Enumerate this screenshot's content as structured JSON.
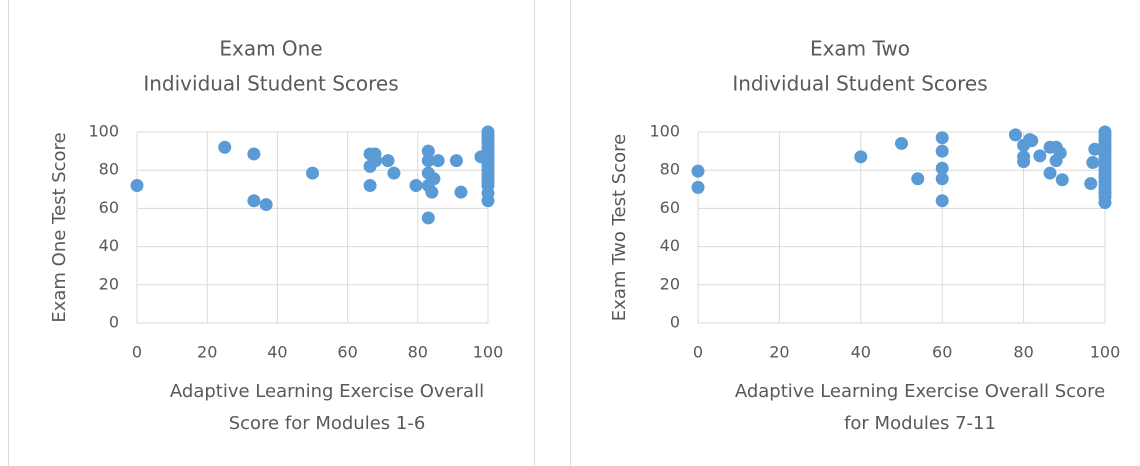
{
  "chart_data": [
    {
      "type": "scatter",
      "title": [
        "Exam One",
        "Individual Student Scores"
      ],
      "xlabel": [
        "Adaptive Learning Exercise Overall",
        "Score for Modules 1-6"
      ],
      "ylabel": "Exam One Test Score",
      "color": "#5b9bd5",
      "grid": true,
      "xlim": [
        0,
        100
      ],
      "ylim": [
        0,
        100
      ],
      "xticks": [
        0,
        20,
        40,
        60,
        80,
        100
      ],
      "yticks": [
        0,
        20,
        40,
        60,
        80,
        100
      ],
      "x": [
        0,
        25,
        33.3,
        33.3,
        36.8,
        50,
        66.4,
        67.8,
        66.4,
        66.4,
        68,
        71.5,
        73.2,
        79.5,
        83,
        83,
        83,
        83,
        83,
        84,
        84.6,
        85.8,
        91,
        92.3,
        98,
        100,
        100,
        100,
        100,
        100,
        100,
        100,
        100,
        100,
        100,
        100,
        100,
        100,
        100,
        100,
        100,
        100
      ],
      "y": [
        72,
        92,
        88.5,
        64,
        62,
        78.5,
        88.5,
        88.5,
        82,
        72,
        85,
        85,
        78.5,
        72,
        90,
        85,
        78.5,
        72,
        55,
        68.5,
        75.5,
        85,
        85,
        68.5,
        87,
        100,
        98,
        96,
        94,
        92,
        90,
        88,
        86,
        84,
        82,
        80,
        78,
        76,
        74,
        72,
        68,
        64
      ]
    },
    {
      "type": "scatter",
      "title": [
        "Exam Two",
        "Individual Student Scores"
      ],
      "xlabel": [
        "Adaptive Learning Exercise Overall Score",
        "for Modules 7-11"
      ],
      "ylabel": "Exam Two Test Score",
      "color": "#5b9bd5",
      "grid": true,
      "xlim": [
        0,
        100
      ],
      "ylim": [
        0,
        100
      ],
      "xticks": [
        0,
        20,
        40,
        60,
        80,
        100
      ],
      "yticks": [
        0,
        20,
        40,
        60,
        80,
        100
      ],
      "x": [
        0,
        0,
        40,
        50,
        54,
        60,
        60,
        60,
        60,
        60,
        78,
        80,
        80,
        80,
        81.5,
        82,
        84,
        86.5,
        86.5,
        88,
        88,
        89,
        89.5,
        96.5,
        97,
        97.5,
        100,
        100,
        100,
        100,
        100,
        100,
        100,
        100,
        100,
        100,
        100,
        100,
        100,
        100,
        100,
        100,
        100,
        100,
        100
      ],
      "y": [
        79.5,
        71,
        87,
        94,
        75.5,
        97,
        90,
        81,
        75.5,
        64,
        98.5,
        93,
        87,
        84.5,
        96,
        95.5,
        87.5,
        92,
        78.5,
        92,
        85,
        89,
        75,
        73,
        84,
        91,
        100,
        98,
        96,
        94,
        92,
        90,
        88,
        86,
        84,
        82,
        80,
        78,
        76,
        74,
        72,
        70,
        68,
        66,
        63
      ]
    }
  ]
}
